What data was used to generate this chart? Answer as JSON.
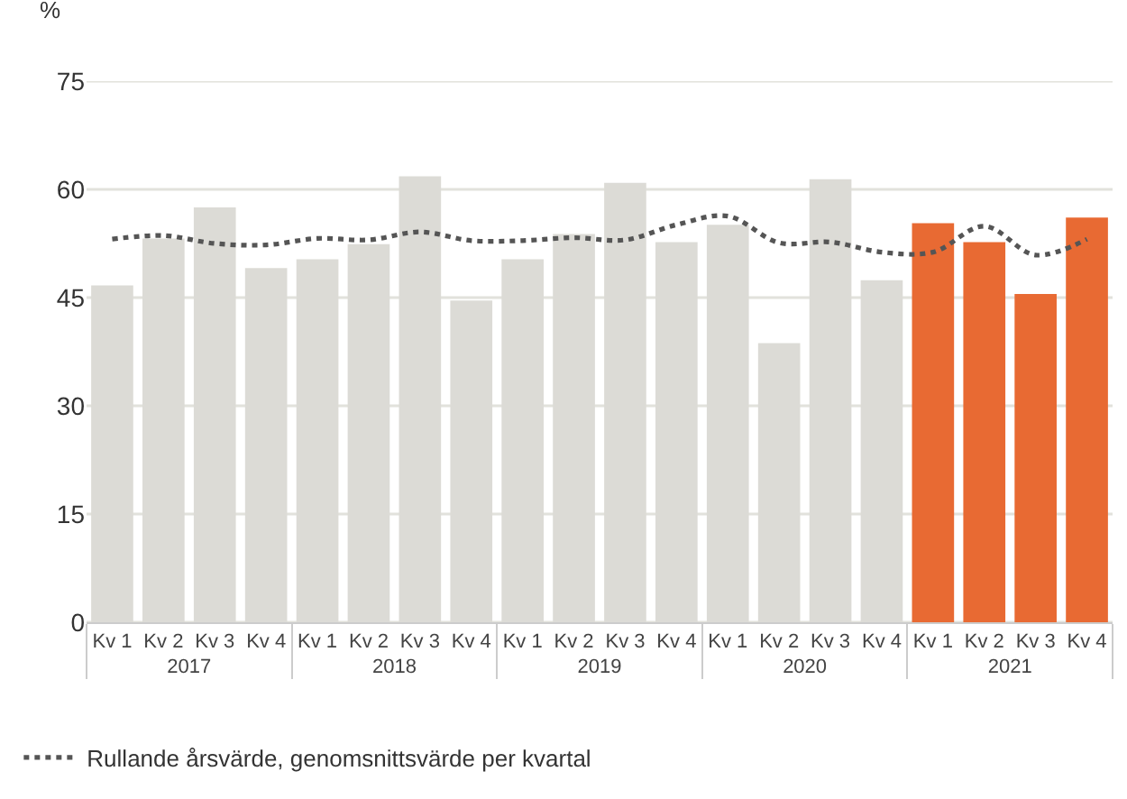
{
  "chart_data": {
    "type": "bar",
    "ylabel": "%",
    "categories": [
      "Kv 1",
      "Kv 2",
      "Kv 3",
      "Kv 4",
      "Kv 1",
      "Kv 2",
      "Kv 3",
      "Kv 4",
      "Kv 1",
      "Kv 2",
      "Kv 3",
      "Kv 4",
      "Kv 1",
      "Kv 2",
      "Kv 3",
      "Kv 4",
      "Kv 1",
      "Kv 2",
      "Kv 3",
      "Kv 4"
    ],
    "annotations": [
      "2017",
      "2018",
      "2019",
      "2020",
      "2021"
    ],
    "series": [
      {
        "colors": [
          "#dcdbd6",
          "#dcdbd6",
          "#dcdbd6",
          "#dcdbd6",
          "#dcdbd6",
          "#dcdbd6",
          "#dcdbd6",
          "#dcdbd6",
          "#dcdbd6",
          "#dcdbd6",
          "#dcdbd6",
          "#dcdbd6",
          "#dcdbd6",
          "#dcdbd6",
          "#dcdbd6",
          "#dcdbd6",
          "#e86a33",
          "#e86a33",
          "#e86a33",
          "#e86a33"
        ],
        "values": [
          46.7,
          53.2,
          57.5,
          49.1,
          50.3,
          52.4,
          61.8,
          44.6,
          50.3,
          53.8,
          60.9,
          52.7,
          55.1,
          38.7,
          61.4,
          47.4,
          55.3,
          52.7,
          45.5,
          56.1
        ]
      },
      {
        "type": "line",
        "name": "Rullande årsvärde, genomsnittsvärde per kvartal",
        "color": "#555555",
        "line_style": "dotted",
        "values": [
          53.1,
          53.6,
          52.5,
          52.3,
          53.2,
          53.0,
          54.1,
          52.9,
          52.9,
          53.3,
          53.0,
          55.1,
          56.3,
          52.6,
          52.7,
          51.3,
          51.3,
          54.9,
          50.9,
          53.1
        ]
      }
    ],
    "ylim": [
      0,
      75
    ],
    "yticks": [
      0,
      15,
      30,
      45,
      60,
      75
    ],
    "grid": "y",
    "legend": "bottom left",
    "marker": "none"
  }
}
